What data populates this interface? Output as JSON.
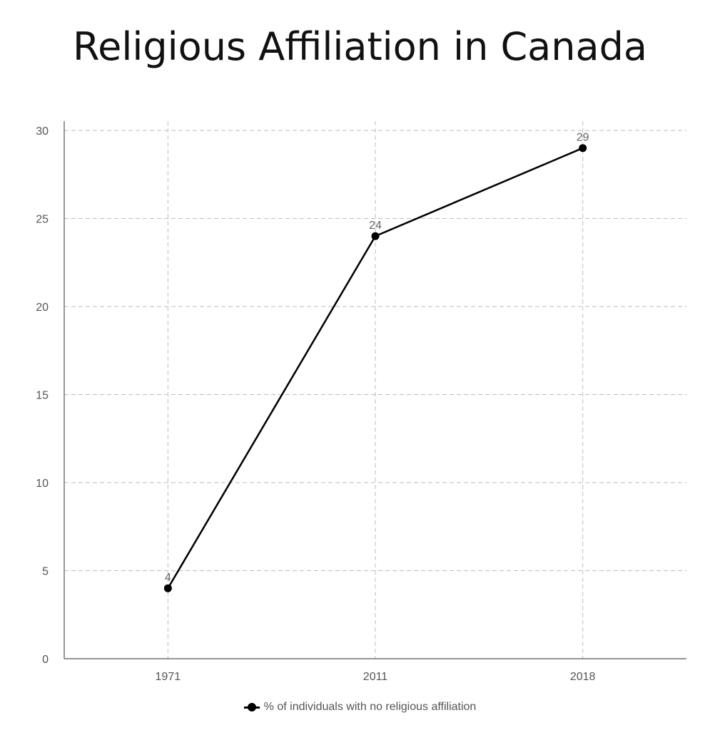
{
  "chart_data": {
    "type": "line",
    "title": "Religious Affiliation in Canada",
    "categories": [
      "1971",
      "2011",
      "2018"
    ],
    "series": [
      {
        "name": "% of individuals with no religious affiliation",
        "values": [
          4,
          24,
          29
        ],
        "color": "#000000"
      }
    ],
    "ylim": [
      0,
      30
    ],
    "yticks": [
      0,
      5,
      10,
      15,
      20,
      25,
      30
    ],
    "xlabel": "",
    "ylabel": "",
    "grid": true,
    "legend": "bottom-center",
    "data_labels": true
  }
}
